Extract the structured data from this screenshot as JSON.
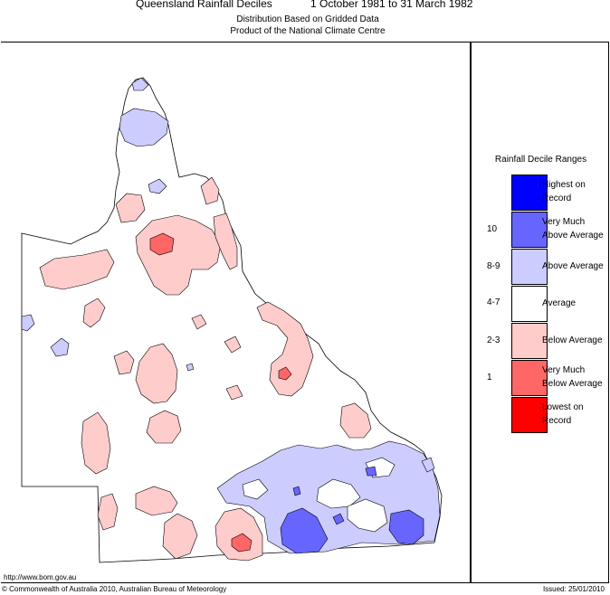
{
  "title": "Queensland Rainfall Deciles",
  "dates": "1 October 1981 to 31 March 1982",
  "subtitle1": "Distribution Based on Gridded Data",
  "subtitle2": "Product of the National Climate Centre",
  "legend": {
    "title": "Rainfall Decile Ranges",
    "items": [
      {
        "range": "",
        "label_line1": "Highest on",
        "label_line2": "Record",
        "color": "#0000ff"
      },
      {
        "range": "10",
        "label_line1": "Very Much",
        "label_line2": "Above Average",
        "color": "#6666ff"
      },
      {
        "range": "8-9",
        "label_line1": "Above Average",
        "label_line2": "",
        "color": "#ccccff"
      },
      {
        "range": "4-7",
        "label_line1": "Average",
        "label_line2": "",
        "color": "#ffffff"
      },
      {
        "range": "2-3",
        "label_line1": "Below Average",
        "label_line2": "",
        "color": "#ffcccc"
      },
      {
        "range": "1",
        "label_line1": "Very Much",
        "label_line2": "Below Average",
        "color": "#ff6666"
      },
      {
        "range": "",
        "label_line1": "Lowest on",
        "label_line2": "Record",
        "color": "#ff0000"
      }
    ]
  },
  "footer": {
    "url": "http://www.bom.gov.au",
    "copyright": "© Commonwealth of Australia 2010, Australian Bureau of Meteorology",
    "issued": "Issued: 25/01/2010"
  },
  "colors": {
    "above": "#ccccff",
    "very_above": "#6666ff",
    "below": "#ffcccc",
    "very_below": "#ff6666"
  }
}
